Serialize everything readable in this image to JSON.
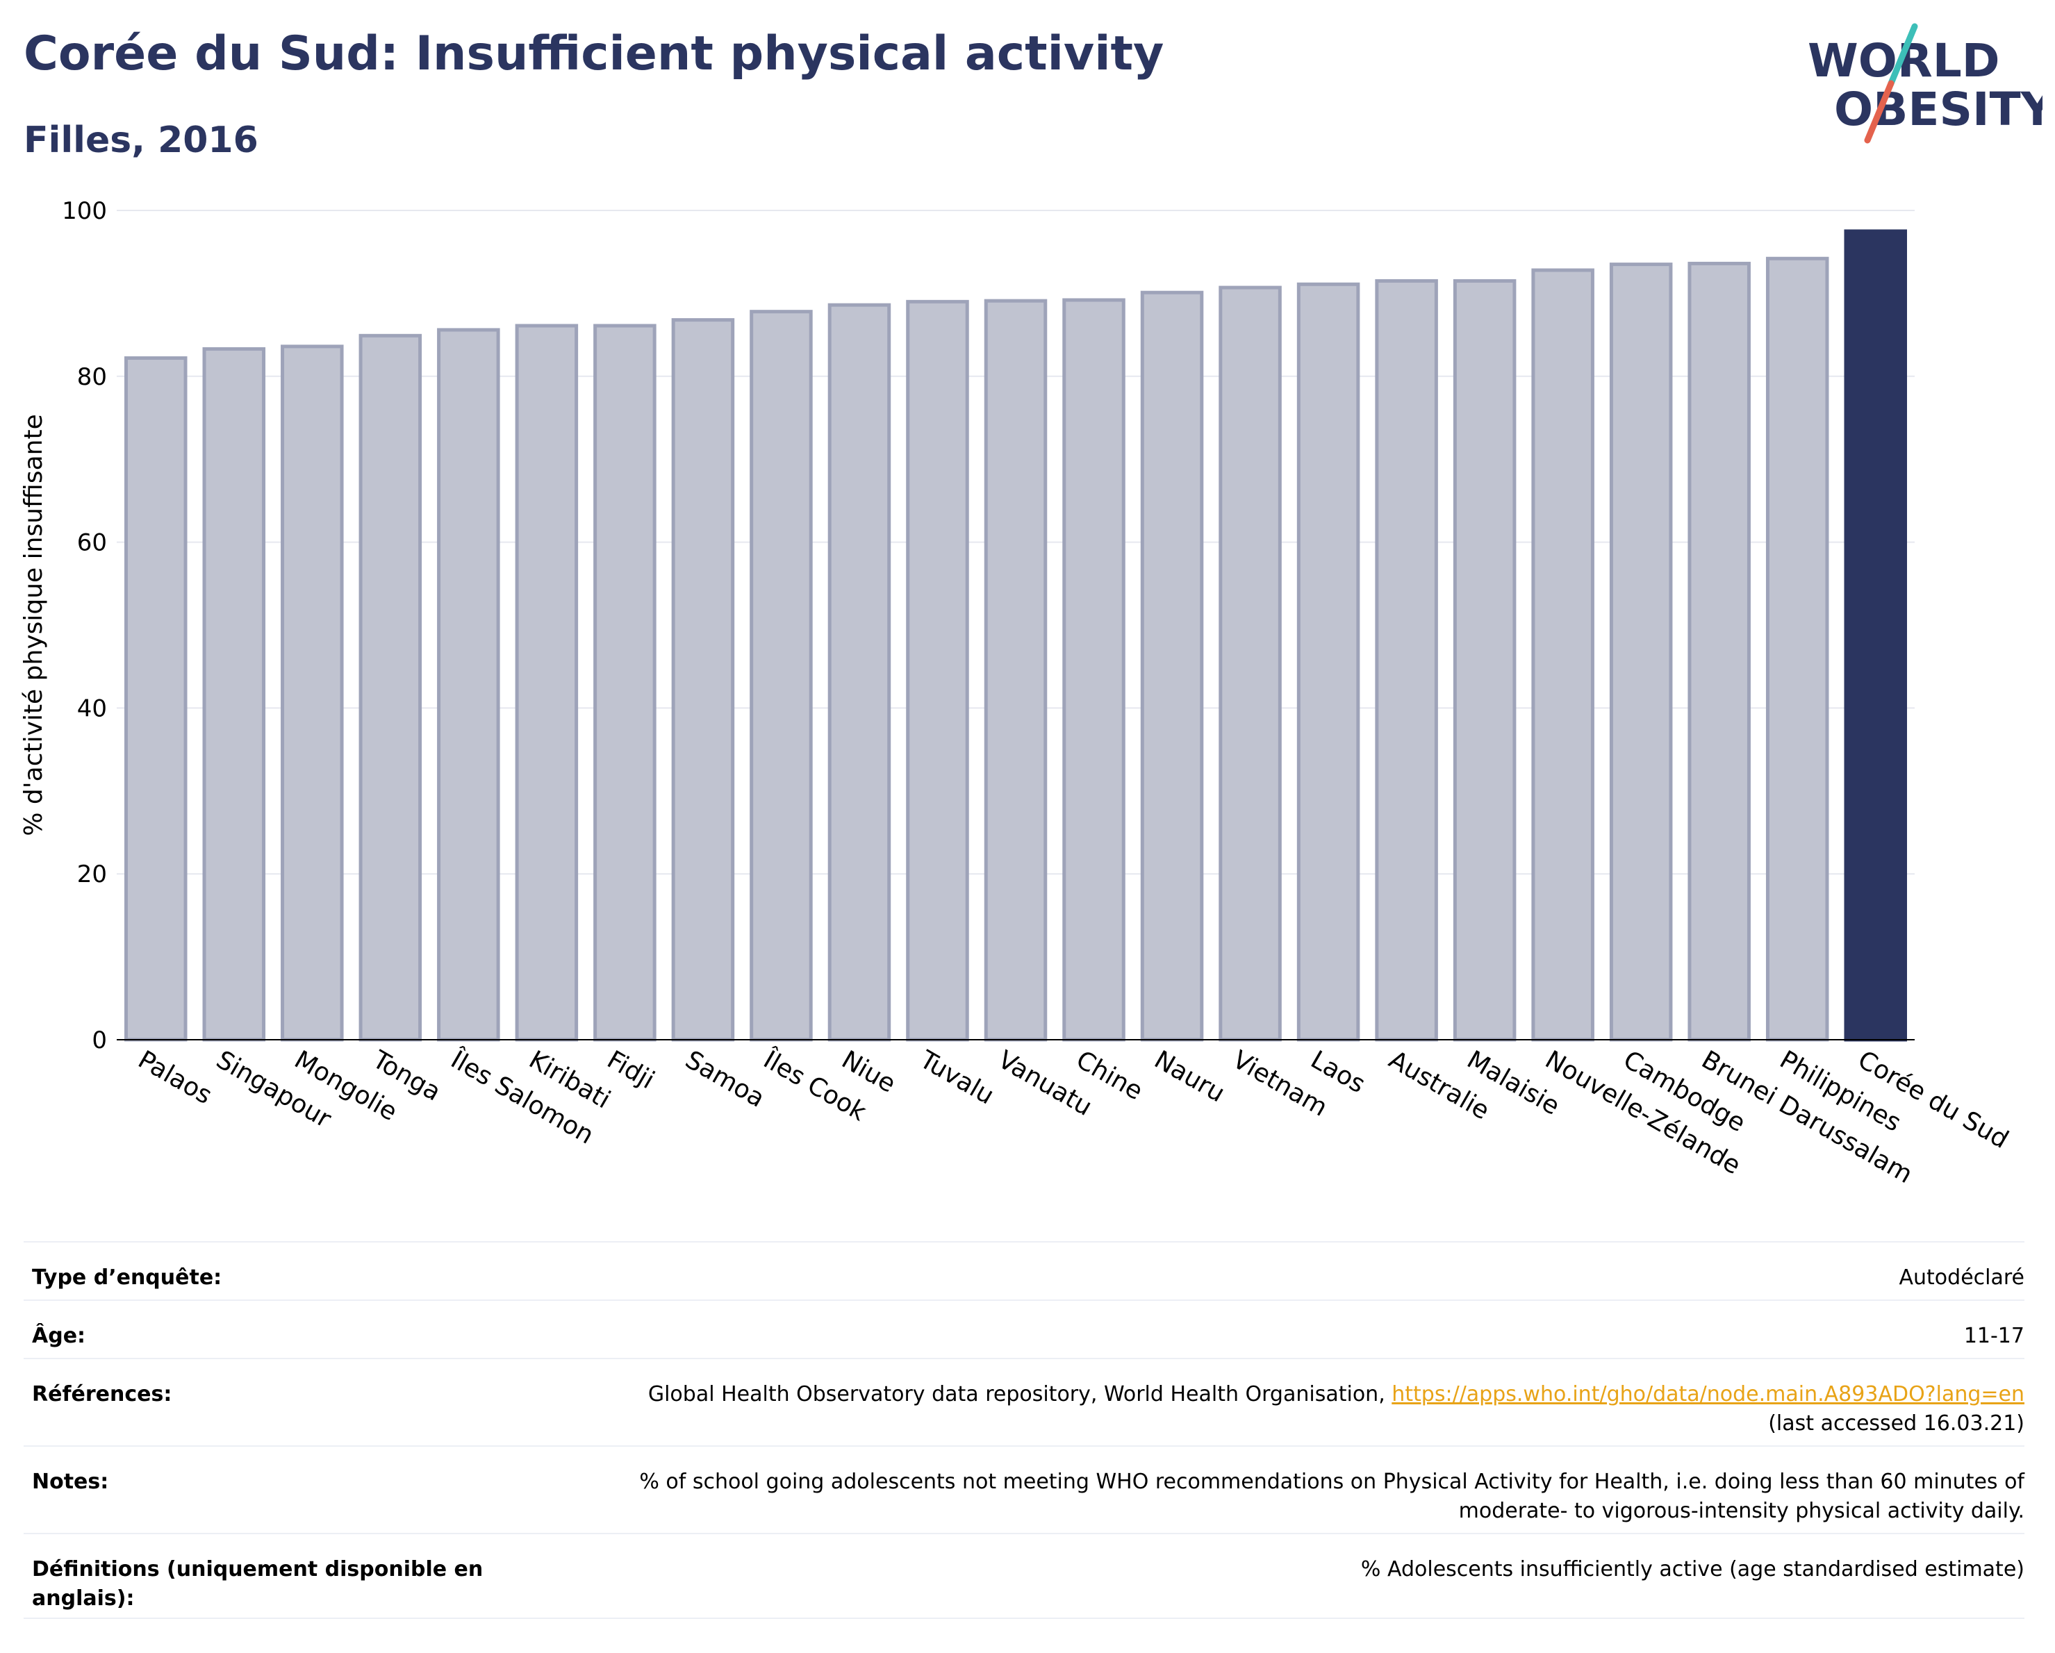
{
  "header": {
    "title": "Corée du Sud: Insufficient physical activity",
    "subtitle": "Filles, 2016"
  },
  "logo": {
    "line1": "WORLD",
    "line2": "OBESITY",
    "colors": {
      "text": "#2b3560",
      "slash_teal": "#3dbfb8",
      "slash_coral": "#e4624d"
    }
  },
  "chart_data": {
    "type": "bar",
    "ylabel": "% d'activité physique insuffisante",
    "xlabel": "",
    "ylim": [
      0,
      100
    ],
    "yticks": [
      0,
      20,
      40,
      60,
      80,
      100
    ],
    "grid": true,
    "categories": [
      "Palaos",
      "Singapour",
      "Mongolie",
      "Tonga",
      "Îles Salomon",
      "Kiribati",
      "Fidji",
      "Samoa",
      "Îles Cook",
      "Niue",
      "Tuvalu",
      "Vanuatu",
      "Chine",
      "Nauru",
      "Vietnam",
      "Laos",
      "Australie",
      "Malaisie",
      "Nouvelle-Zélande",
      "Cambodge",
      "Brunei Darussalam",
      "Philippines",
      "Corée du Sud"
    ],
    "values": [
      82.2,
      83.3,
      83.6,
      84.9,
      85.6,
      86.1,
      86.1,
      86.8,
      87.8,
      88.6,
      89.0,
      89.1,
      89.2,
      90.1,
      90.7,
      91.1,
      91.5,
      91.5,
      92.8,
      93.5,
      93.6,
      94.2,
      97.5
    ],
    "highlight": "Corée du Sud",
    "colors": {
      "bar": "#c0c3d0",
      "bar_border": "#9ea3b9",
      "highlight": "#2b3560",
      "grid": "#e6e8ef"
    }
  },
  "info": [
    {
      "label": "Type d’enquête:",
      "value": "Autodéclaré"
    },
    {
      "label": "Âge:",
      "value": "11-17"
    },
    {
      "label": "Références:",
      "value": "Global Health Observatory data repository, World Health Organisation, ",
      "link": "https://apps.who.int/gho/data/node.main.A893ADO?lang=en",
      "value_after": "(last accessed 16.03.21)"
    },
    {
      "label": "Notes:",
      "value": "% of school going adolescents not meeting WHO recommendations on Physical Activity for Health, i.e. doing less than 60 minutes of moderate- to vigorous-intensity physical activity daily."
    },
    {
      "label": "Définitions (uniquement disponible en anglais):",
      "value": "% Adolescents insufficiently active (age standardised estimate)"
    }
  ]
}
